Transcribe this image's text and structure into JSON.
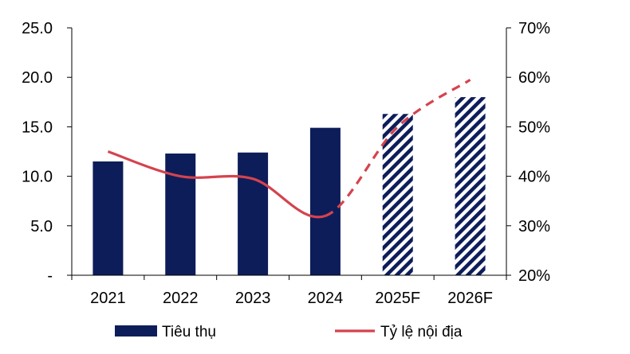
{
  "chart_data": {
    "type": "bar",
    "categories": [
      "2021",
      "2022",
      "2023",
      "2024",
      "2025F",
      "2026F"
    ],
    "series": [
      {
        "name": "Tiêu thụ",
        "type": "bar",
        "axis": "left",
        "values": [
          11.5,
          12.3,
          12.4,
          14.9,
          16.3,
          18.0
        ],
        "forecast_from_index": 4,
        "color": "#0d1d5a",
        "forecast_pattern": "diagonal-stripes"
      },
      {
        "name": "Tỷ lệ nội địa",
        "type": "line",
        "axis": "right",
        "values": [
          45,
          40,
          39.5,
          32,
          50,
          59.5
        ],
        "dashed_from_index": 3,
        "color": "#d4434e"
      }
    ],
    "y_left": {
      "ylim": [
        0,
        25
      ],
      "ticks": [
        "-",
        "5.0",
        "10.0",
        "15.0",
        "20.0",
        "25.0"
      ]
    },
    "y_right": {
      "ylim": [
        20,
        70
      ],
      "ticks": [
        "20%",
        "30%",
        "40%",
        "50%",
        "60%",
        "70%"
      ]
    },
    "grid": false,
    "legend_position": "bottom",
    "title": "",
    "xlabel": "",
    "ylabel": ""
  }
}
